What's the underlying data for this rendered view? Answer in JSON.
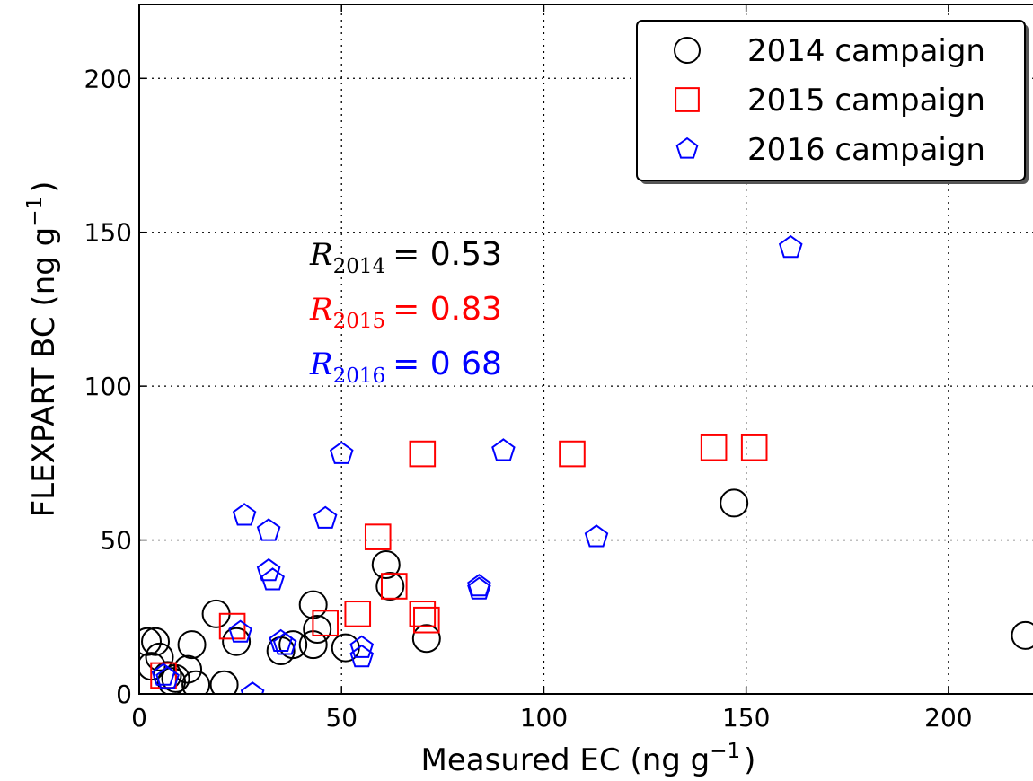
{
  "chart_data": {
    "type": "scatter",
    "xlabel": "Measured EC (ng g",
    "xlabel_unit_exp": "−1",
    "xlabel_close": ")",
    "ylabel": "FLEXPART BC (ng g",
    "ylabel_unit_exp": "−1",
    "ylabel_close": ")",
    "xlim": [
      0,
      222
    ],
    "ylim": [
      0,
      224
    ],
    "xticks": [
      0,
      50,
      100,
      150,
      200
    ],
    "yticks": [
      0,
      50,
      100,
      150,
      200
    ],
    "grid": true,
    "legend_position": "top-right",
    "series": [
      {
        "name": "2014 campaign",
        "marker": "circle",
        "color": "#000000",
        "points": [
          [
            2,
            17
          ],
          [
            4,
            17
          ],
          [
            5,
            12
          ],
          [
            3,
            9
          ],
          [
            7,
            6
          ],
          [
            8,
            4
          ],
          [
            9,
            5
          ],
          [
            12,
            8
          ],
          [
            13,
            16
          ],
          [
            14,
            3
          ],
          [
            19,
            26
          ],
          [
            21,
            3
          ],
          [
            24,
            17
          ],
          [
            35,
            14
          ],
          [
            38,
            16
          ],
          [
            43,
            16
          ],
          [
            43,
            29
          ],
          [
            44,
            21
          ],
          [
            51,
            15
          ],
          [
            61,
            42
          ],
          [
            62,
            35
          ],
          [
            71,
            18
          ],
          [
            147,
            62
          ],
          [
            219,
            19
          ]
        ]
      },
      {
        "name": "2015 campaign",
        "marker": "square",
        "color": "#ff0000",
        "points": [
          [
            6,
            6
          ],
          [
            23,
            22
          ],
          [
            46,
            23
          ],
          [
            54,
            26
          ],
          [
            59,
            51
          ],
          [
            63,
            35
          ],
          [
            70,
            78
          ],
          [
            70,
            26
          ],
          [
            71,
            24
          ],
          [
            107,
            78
          ],
          [
            142,
            80
          ],
          [
            152,
            80
          ]
        ]
      },
      {
        "name": "2016 campaign",
        "marker": "pentagon",
        "color": "#0000ff",
        "points": [
          [
            6,
            6
          ],
          [
            7,
            5
          ],
          [
            25,
            20
          ],
          [
            26,
            58
          ],
          [
            28,
            0
          ],
          [
            32,
            40
          ],
          [
            32,
            53
          ],
          [
            33,
            37
          ],
          [
            35,
            17
          ],
          [
            36,
            16
          ],
          [
            46,
            57
          ],
          [
            50,
            78
          ],
          [
            55,
            15
          ],
          [
            55,
            12
          ],
          [
            84,
            35
          ],
          [
            84,
            34
          ],
          [
            90,
            79
          ],
          [
            113,
            51
          ],
          [
            161,
            145
          ]
        ]
      }
    ],
    "annotations": [
      {
        "symbol": "R",
        "subscript": "2014",
        "text": "= 0.53",
        "color": "#000000"
      },
      {
        "symbol": "R",
        "subscript": "2015",
        "text": "= 0.83",
        "color": "#ff0000"
      },
      {
        "symbol": "R",
        "subscript": "2016",
        "text": "= 0 68",
        "color": "#0000ff"
      }
    ]
  }
}
